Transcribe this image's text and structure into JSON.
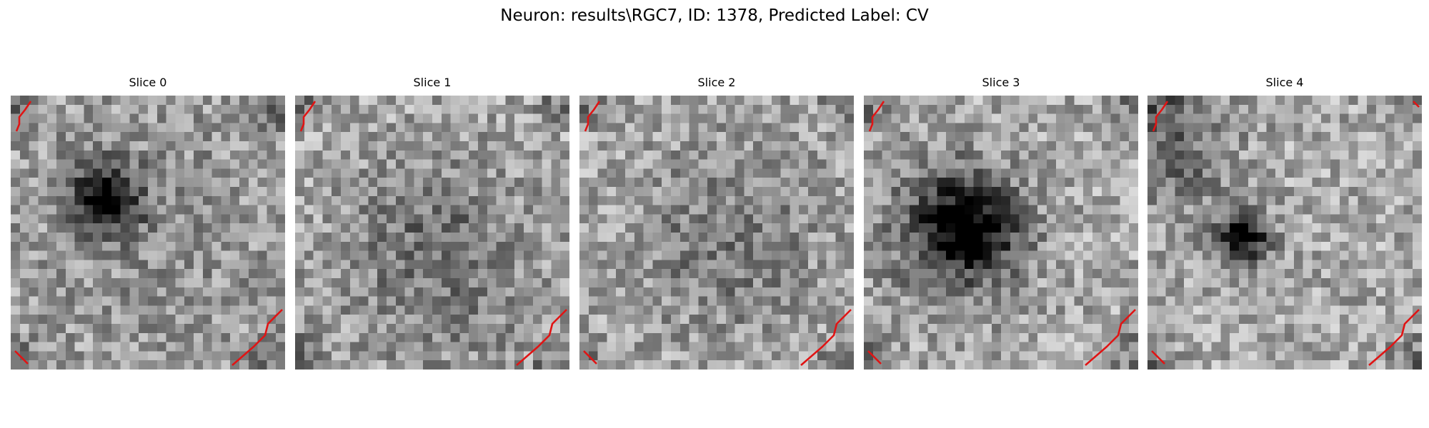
{
  "figure": {
    "title": "Neuron: results\\RGC7, ID: 1378, Predicted Label: CV",
    "colormap": "gray",
    "contour_color": "#e01414",
    "grid_size": 30
  },
  "slices": [
    {
      "title": "Slice 0",
      "dark_spot": [
        0.35,
        0.38,
        0.09,
        1.0
      ],
      "dark_region": [
        0.55,
        0.45,
        0.45,
        0.18
      ],
      "contour_corners": [
        "top-left",
        "bottom-left",
        "bottom-right"
      ]
    },
    {
      "title": "Slice 1",
      "dark_spot": [
        0.5,
        0.5,
        0.2,
        0.25
      ],
      "dark_region": [
        0.55,
        0.75,
        0.3,
        0.2
      ],
      "contour_corners": [
        "top-left",
        "bottom-right"
      ]
    },
    {
      "title": "Slice 2",
      "dark_spot": [
        0.5,
        0.55,
        0.2,
        0.2
      ],
      "dark_region": [
        0.6,
        0.5,
        0.3,
        0.15
      ],
      "contour_corners": [
        "top-left",
        "bottom-left",
        "bottom-right"
      ]
    },
    {
      "title": "Slice 3",
      "dark_spot": [
        0.38,
        0.48,
        0.12,
        0.95
      ],
      "dark_region": [
        0.3,
        0.5,
        0.2,
        0.45
      ],
      "contour_corners": [
        "top-left",
        "bottom-left",
        "bottom-right"
      ]
    },
    {
      "title": "Slice 4",
      "dark_spot": [
        0.35,
        0.52,
        0.07,
        1.0
      ],
      "dark_region": [
        0.1,
        0.2,
        0.15,
        0.5
      ],
      "contour_corners": [
        "top-left",
        "top-right",
        "bottom-left",
        "bottom-right"
      ]
    }
  ]
}
